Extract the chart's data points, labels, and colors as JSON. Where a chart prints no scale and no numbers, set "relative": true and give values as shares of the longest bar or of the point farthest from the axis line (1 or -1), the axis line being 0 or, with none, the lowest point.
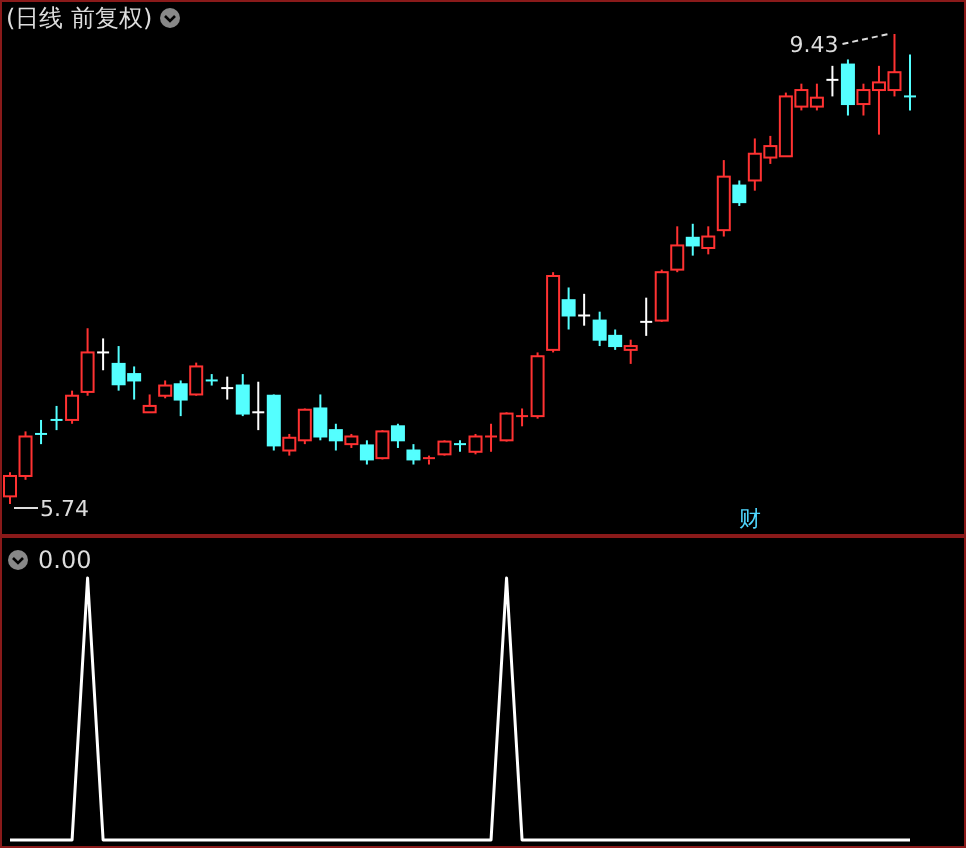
{
  "chart_data": [
    {
      "type": "candlestick",
      "title": "(日线 前复权)",
      "categories": [
        null,
        null,
        null,
        null,
        null,
        null,
        null,
        null,
        null,
        null,
        null,
        null,
        null,
        null,
        null,
        null,
        null,
        null,
        null,
        null,
        null,
        null,
        null,
        null,
        null,
        null,
        null,
        null,
        null,
        null,
        null,
        null,
        null,
        null,
        null,
        null,
        null,
        null,
        null,
        null,
        null,
        null,
        null,
        null,
        null,
        null,
        null,
        null,
        null,
        null,
        null,
        null,
        null,
        null,
        null,
        null,
        null,
        null,
        null
      ],
      "ohlc": [
        [
          5.8,
          5.99,
          5.74,
          5.96
        ],
        [
          5.96,
          6.31,
          5.93,
          6.27
        ],
        [
          6.29,
          6.4,
          6.21,
          6.29
        ],
        [
          6.4,
          6.51,
          6.32,
          6.4
        ],
        [
          6.4,
          6.63,
          6.37,
          6.59
        ],
        [
          6.62,
          7.12,
          6.59,
          6.93
        ],
        [
          6.93,
          7.04,
          6.79,
          6.93
        ],
        [
          6.84,
          6.98,
          6.63,
          6.68
        ],
        [
          6.76,
          6.82,
          6.56,
          6.71
        ],
        [
          6.46,
          6.6,
          6.46,
          6.51
        ],
        [
          6.59,
          6.71,
          6.57,
          6.67
        ],
        [
          6.68,
          6.71,
          6.43,
          6.56
        ],
        [
          6.6,
          6.85,
          6.59,
          6.82
        ],
        [
          6.71,
          6.76,
          6.67,
          6.71
        ],
        [
          6.65,
          6.74,
          6.56,
          6.65
        ],
        [
          6.67,
          6.76,
          6.43,
          6.45
        ],
        [
          6.46,
          6.7,
          6.32,
          6.46
        ],
        [
          6.59,
          6.6,
          6.16,
          6.2
        ],
        [
          6.16,
          6.29,
          6.12,
          6.26
        ],
        [
          6.24,
          6.49,
          6.21,
          6.48
        ],
        [
          6.49,
          6.6,
          6.24,
          6.27
        ],
        [
          6.32,
          6.37,
          6.16,
          6.24
        ],
        [
          6.21,
          6.29,
          6.18,
          6.27
        ],
        [
          6.2,
          6.24,
          6.05,
          6.09
        ],
        [
          6.1,
          6.32,
          6.09,
          6.31
        ],
        [
          6.35,
          6.37,
          6.18,
          6.24
        ],
        [
          6.16,
          6.21,
          6.05,
          6.09
        ],
        [
          6.09,
          6.12,
          6.05,
          6.1
        ],
        [
          6.13,
          6.24,
          6.12,
          6.23
        ],
        [
          6.21,
          6.24,
          6.15,
          6.21
        ],
        [
          6.15,
          6.29,
          6.13,
          6.27
        ],
        [
          6.27,
          6.37,
          6.15,
          6.27
        ],
        [
          6.24,
          6.46,
          6.23,
          6.45
        ],
        [
          6.43,
          6.49,
          6.35,
          6.43
        ],
        [
          6.43,
          6.93,
          6.41,
          6.9
        ],
        [
          6.95,
          7.56,
          6.93,
          7.53
        ],
        [
          7.34,
          7.44,
          7.11,
          7.22
        ],
        [
          7.22,
          7.39,
          7.14,
          7.22
        ],
        [
          7.18,
          7.25,
          6.98,
          7.03
        ],
        [
          7.06,
          7.11,
          6.95,
          6.98
        ],
        [
          6.95,
          7.03,
          6.84,
          6.98
        ],
        [
          7.17,
          7.36,
          7.06,
          7.17
        ],
        [
          7.18,
          7.58,
          7.17,
          7.56
        ],
        [
          7.58,
          7.92,
          7.56,
          7.77
        ],
        [
          7.83,
          7.94,
          7.69,
          7.77
        ],
        [
          7.75,
          7.92,
          7.7,
          7.84
        ],
        [
          7.89,
          8.44,
          7.84,
          8.31
        ],
        [
          8.24,
          8.28,
          8.08,
          8.11
        ],
        [
          8.28,
          8.61,
          8.2,
          8.49
        ],
        [
          8.46,
          8.63,
          8.41,
          8.55
        ],
        [
          8.47,
          8.97,
          8.47,
          8.94
        ],
        [
          8.86,
          9.04,
          8.83,
          8.99
        ],
        [
          8.86,
          9.04,
          8.83,
          8.93
        ],
        [
          9.07,
          9.18,
          8.94,
          9.07
        ],
        [
          9.19,
          9.23,
          8.79,
          8.88
        ],
        [
          8.88,
          9.04,
          8.79,
          8.99
        ],
        [
          8.99,
          9.18,
          8.64,
          9.05
        ],
        [
          8.99,
          9.43,
          8.94,
          9.13
        ],
        [
          8.94,
          9.27,
          8.83,
          8.94
        ]
      ],
      "colors": [
        "#ff3232",
        "#ff3232",
        "#54ffff",
        "#54ffff",
        "#ff3232",
        "#ff3232",
        "#ffffff",
        "#54ffff",
        "#54ffff",
        "#ff3232",
        "#ff3232",
        "#54ffff",
        "#ff3232",
        "#54ffff",
        "#ffffff",
        "#54ffff",
        "#ffffff",
        "#54ffff",
        "#ff3232",
        "#ff3232",
        "#54ffff",
        "#54ffff",
        "#ff3232",
        "#54ffff",
        "#ff3232",
        "#54ffff",
        "#54ffff",
        "#ff3232",
        "#ff3232",
        "#54ffff",
        "#ff3232",
        "#ff3232",
        "#ff3232",
        "#ff3232",
        "#ff3232",
        "#ff3232",
        "#54ffff",
        "#ffffff",
        "#54ffff",
        "#54ffff",
        "#ff3232",
        "#ffffff",
        "#ff3232",
        "#ff3232",
        "#54ffff",
        "#ff3232",
        "#ff3232",
        "#54ffff",
        "#ff3232",
        "#ff3232",
        "#ff3232",
        "#ff3232",
        "#ff3232",
        "#ffffff",
        "#54ffff",
        "#ff3232",
        "#ff3232",
        "#ff3232",
        "#54ffff"
      ],
      "annotations": [
        "9.43",
        "5.74",
        "财"
      ]
    },
    {
      "type": "line",
      "title": "0.00",
      "relative": true,
      "series": [
        {
          "color": "#ffffff",
          "values": [
            0,
            0,
            0,
            0,
            0,
            1,
            0,
            0,
            0,
            0,
            0,
            0,
            0,
            0,
            0,
            0,
            0,
            0,
            0,
            0,
            0,
            0,
            0,
            0,
            0,
            0,
            0,
            0,
            0,
            0,
            0,
            0,
            1,
            0,
            0,
            0,
            0,
            0,
            0,
            0,
            0,
            0,
            0,
            0,
            0,
            0,
            0,
            0,
            0,
            0,
            0,
            0,
            0,
            0,
            0,
            0,
            0,
            0,
            0
          ]
        }
      ],
      "categories": [
        null,
        null,
        null,
        null,
        null,
        null,
        null,
        null,
        null,
        null,
        null,
        null,
        null,
        null,
        null,
        null,
        null,
        null,
        null,
        null,
        null,
        null,
        null,
        null,
        null,
        null,
        null,
        null,
        null,
        null,
        null,
        null,
        null,
        null,
        null,
        null,
        null,
        null,
        null,
        null,
        null,
        null,
        null,
        null,
        null,
        null,
        null,
        null,
        null,
        null,
        null,
        null,
        null,
        null,
        null,
        null,
        null,
        null,
        null
      ]
    }
  ]
}
